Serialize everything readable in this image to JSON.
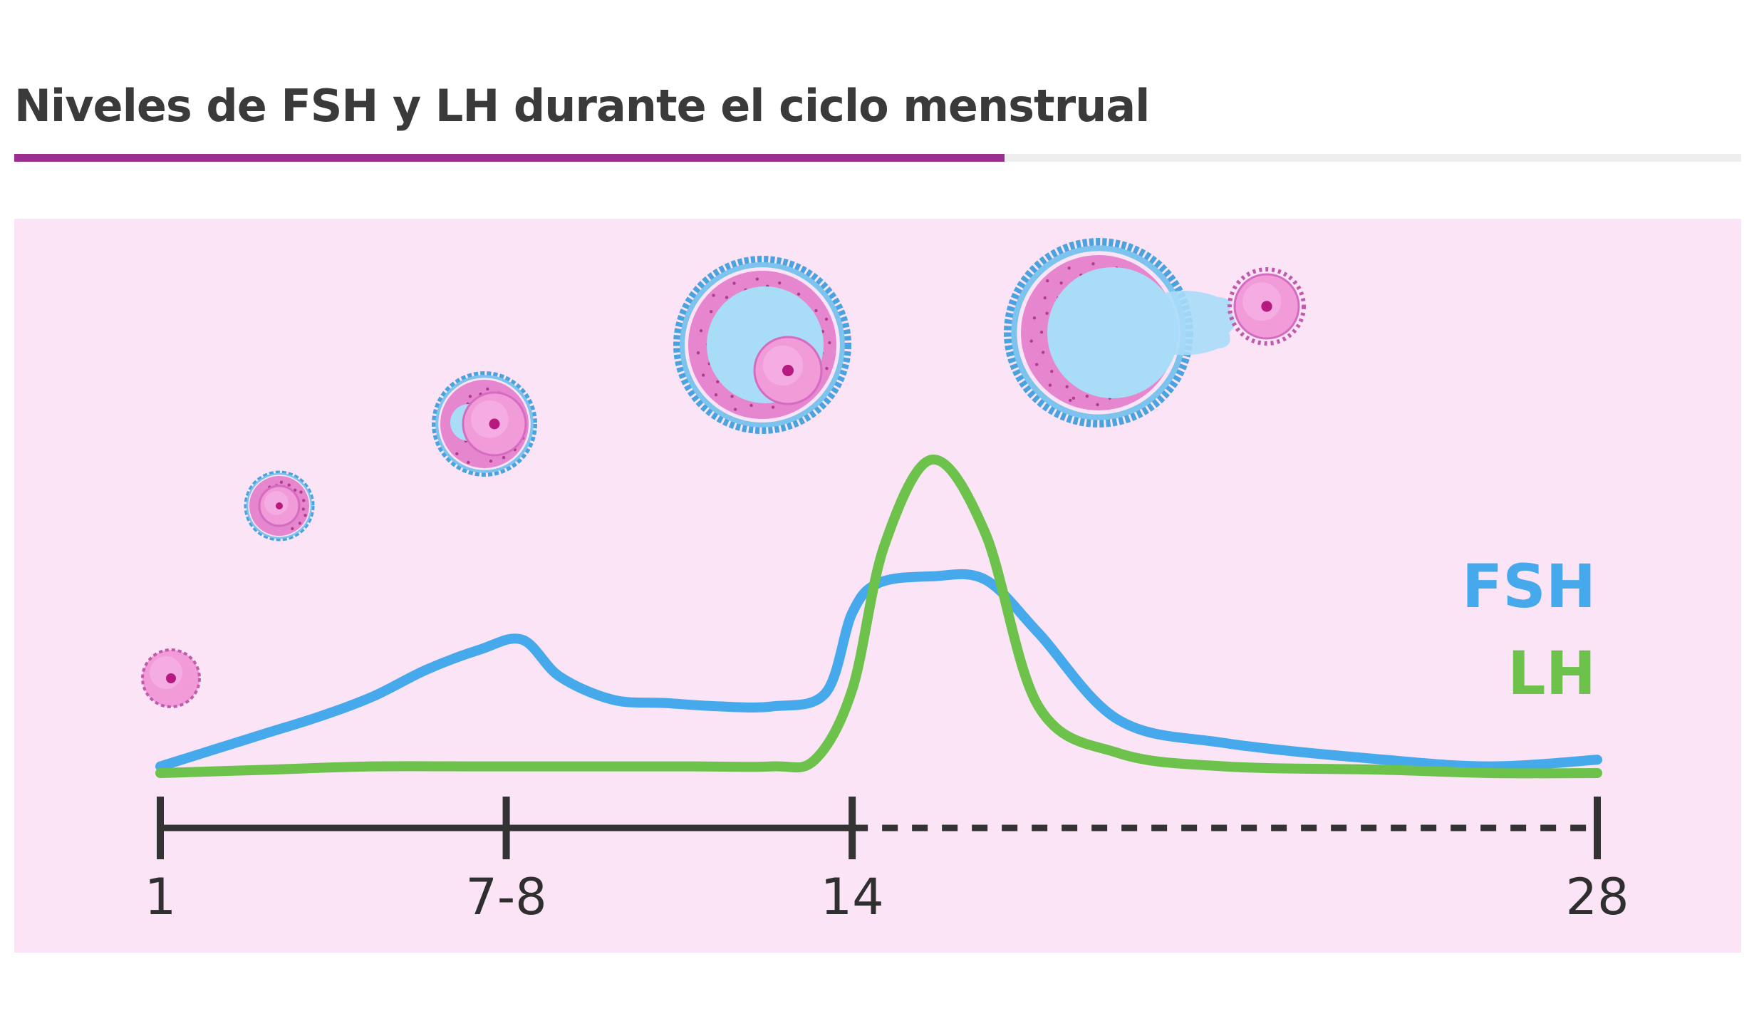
{
  "title": "Niveles de FSH y LH durante el ciclo menstrual",
  "colors": {
    "accent": "#9b2f8f",
    "panel_bg": "#fce4f7",
    "fsh": "#45a9eb",
    "lh": "#6cc24a",
    "axis": "#333333",
    "follicle_pink": "#e686cf",
    "follicle_blue": "#4aa3df",
    "antrum": "#a8dcf7"
  },
  "follicle_icons": [
    "primordial-follicle-icon",
    "primary-follicle-icon",
    "secondary-follicle-icon",
    "antral-follicle-icon",
    "ovulating-follicle-icon",
    "released-oocyte-icon"
  ],
  "chart_data": {
    "type": "line",
    "x_ticks": [
      "1",
      "7-8",
      "14",
      "28"
    ],
    "x_range": [
      1,
      28
    ],
    "y_range": [
      0,
      100
    ],
    "axis_solid_until": "14",
    "axis_dashed_after": "14",
    "series": [
      {
        "name": "FSH",
        "color": "#45a9eb",
        "x": [
          1,
          2,
          3,
          4,
          5,
          6,
          7,
          7.8,
          8.5,
          9.5,
          10.5,
          11.5,
          12.5,
          13.5,
          14,
          14.5,
          15.5,
          16.5,
          17.5,
          19,
          21,
          24,
          26,
          28
        ],
        "y": [
          2,
          7,
          12,
          17,
          23,
          31,
          37,
          40,
          29,
          22,
          21,
          20,
          20,
          24,
          48,
          57,
          59,
          58,
          42,
          16,
          9,
          4,
          2,
          4
        ]
      },
      {
        "name": "LH",
        "color": "#6cc24a",
        "x": [
          1,
          3,
          5,
          7,
          9,
          11,
          12.5,
          13.3,
          14,
          14.6,
          15.5,
          16.5,
          17.5,
          19,
          21,
          24,
          26,
          28
        ],
        "y": [
          0,
          1,
          2,
          2,
          2,
          2,
          2,
          4,
          25,
          68,
          94,
          72,
          20,
          6,
          2,
          1,
          0,
          0
        ]
      }
    ]
  }
}
